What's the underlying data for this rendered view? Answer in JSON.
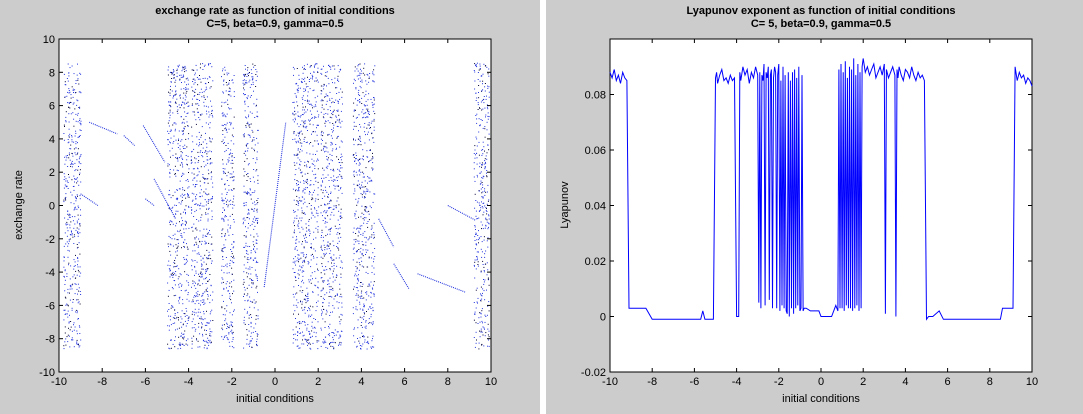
{
  "chart_data": [
    {
      "type": "scatter",
      "title": "exchange rate as function of initial conditions",
      "subtitle": "C=5, beta=0.9, gamma=0.5",
      "xlabel": "initial conditions",
      "ylabel": "exchange rate",
      "xlim": [
        -10,
        10
      ],
      "ylim": [
        -10,
        10
      ],
      "xticks": [
        -10,
        -8,
        -6,
        -4,
        -2,
        0,
        2,
        4,
        6,
        8,
        10
      ],
      "yticks": [
        -10,
        -8,
        -6,
        -4,
        -2,
        0,
        2,
        4,
        6,
        8,
        10
      ],
      "point_color": "#2233dd",
      "chaotic_bands": [
        [
          -9.8,
          -9.0
        ],
        [
          -5.0,
          -4.0
        ],
        [
          -3.9,
          -2.9
        ],
        [
          -2.5,
          -1.9
        ],
        [
          -1.5,
          -0.8
        ],
        [
          0.8,
          2.0
        ],
        [
          2.1,
          3.1
        ],
        [
          3.6,
          4.6
        ],
        [
          9.2,
          9.9
        ]
      ],
      "band_yrange": [
        -8.6,
        8.6
      ],
      "line_segments": [
        [
          [
            -8.6,
            5.0
          ],
          [
            -7.3,
            4.3
          ]
        ],
        [
          [
            -7.0,
            4.2
          ],
          [
            -6.5,
            3.6
          ]
        ],
        [
          [
            -6.1,
            4.8
          ],
          [
            -5.1,
            2.6
          ]
        ],
        [
          [
            -5.6,
            1.6
          ],
          [
            -4.6,
            -0.8
          ]
        ],
        [
          [
            -9.0,
            0.7
          ],
          [
            -8.2,
            0.0
          ]
        ],
        [
          [
            -6.0,
            0.4
          ],
          [
            -5.6,
            0.0
          ]
        ],
        [
          [
            -0.5,
            -4.9
          ],
          [
            0.5,
            5.0
          ]
        ],
        [
          [
            4.8,
            -0.8
          ],
          [
            5.5,
            -2.5
          ]
        ],
        [
          [
            5.5,
            -3.5
          ],
          [
            6.2,
            -5.0
          ]
        ],
        [
          [
            6.6,
            -4.1
          ],
          [
            8.8,
            -5.2
          ]
        ],
        [
          [
            8.0,
            0.0
          ],
          [
            9.3,
            -0.9
          ]
        ]
      ]
    },
    {
      "type": "line",
      "title": "Lyapunov exponent as function of initial conditions",
      "subtitle": "C= 5, beta=0.9, gamma=0.5",
      "xlabel": "initial conditions",
      "ylabel": "Lyapunov",
      "xlim": [
        -10,
        10
      ],
      "ylim": [
        -0.02,
        0.1
      ],
      "xticks": [
        -10,
        -8,
        -6,
        -4,
        -2,
        0,
        2,
        4,
        6,
        8,
        10
      ],
      "yticks": [
        -0.02,
        0,
        0.02,
        0.04,
        0.06,
        0.08
      ],
      "ytick_labels": [
        "-0.02",
        "0",
        "0.02",
        "0.04",
        "0.06",
        "0.08"
      ],
      "line_color": "#0000ff",
      "x": [
        -10.0,
        -9.9,
        -9.8,
        -9.7,
        -9.6,
        -9.5,
        -9.4,
        -9.3,
        -9.2,
        -9.1,
        -9.0,
        -8.9,
        -8.8,
        -8.7,
        -8.6,
        -8.5,
        -8.4,
        -8.3,
        -8.0,
        -7.0,
        -6.0,
        -5.7,
        -5.6,
        -5.5,
        -5.4,
        -5.1,
        -5.0,
        -4.95,
        -4.9,
        -4.8,
        -4.7,
        -4.6,
        -4.5,
        -4.4,
        -4.3,
        -4.2,
        -4.1,
        -4.0,
        -3.9,
        -3.85,
        -3.8,
        -3.7,
        -3.6,
        -3.5,
        -3.4,
        -3.3,
        -3.2,
        -3.1,
        -3.0,
        -2.95,
        -2.9,
        -2.85,
        -2.8,
        -2.75,
        -2.7,
        -2.65,
        -2.6,
        -2.55,
        -2.5,
        -2.45,
        -2.4,
        -2.35,
        -2.3,
        -2.25,
        -2.2,
        -2.15,
        -2.1,
        -2.05,
        -2.0,
        -1.95,
        -1.9,
        -1.85,
        -1.8,
        -1.75,
        -1.7,
        -1.65,
        -1.6,
        -1.55,
        -1.5,
        -1.45,
        -1.4,
        -1.35,
        -1.3,
        -1.25,
        -1.2,
        -1.15,
        -1.1,
        -1.05,
        -1.0,
        -0.95,
        -0.9,
        -0.85,
        -0.8,
        -0.7,
        -0.5,
        -0.3,
        -0.1,
        0.0,
        0.3,
        0.5,
        0.7,
        0.8,
        0.85,
        0.9,
        0.95,
        1.0,
        1.05,
        1.1,
        1.15,
        1.2,
        1.25,
        1.3,
        1.35,
        1.4,
        1.45,
        1.5,
        1.55,
        1.6,
        1.65,
        1.7,
        1.75,
        1.8,
        1.85,
        1.9,
        1.95,
        2.0,
        2.1,
        2.2,
        2.3,
        2.4,
        2.5,
        2.6,
        2.7,
        2.8,
        2.9,
        3.0,
        3.05,
        3.1,
        3.2,
        3.3,
        3.4,
        3.5,
        3.55,
        3.6,
        3.65,
        3.7,
        3.8,
        3.9,
        4.0,
        4.1,
        4.2,
        4.3,
        4.4,
        4.5,
        4.6,
        4.7,
        4.8,
        4.9,
        5.0,
        5.1,
        5.3,
        5.6,
        5.8,
        6.0,
        7.0,
        8.0,
        8.5,
        8.6,
        8.8,
        9.0,
        9.1,
        9.2,
        9.3,
        9.4,
        9.5,
        9.6,
        9.7,
        9.8,
        9.9,
        10.0
      ],
      "y": [
        0.088,
        0.086,
        0.089,
        0.085,
        0.087,
        0.084,
        0.088,
        0.086,
        0.085,
        0.003,
        0.003,
        0.003,
        0.003,
        0.003,
        0.003,
        0.003,
        0.003,
        0.003,
        -0.001,
        -0.001,
        -0.001,
        -0.001,
        0.002,
        -0.001,
        -0.001,
        -0.001,
        0.086,
        0.088,
        0.084,
        0.087,
        0.089,
        0.085,
        0.086,
        0.084,
        0.087,
        0.085,
        0.086,
        0.0,
        0.0,
        0.088,
        0.085,
        0.09,
        0.087,
        0.089,
        0.084,
        0.088,
        0.086,
        0.09,
        0.087,
        0.005,
        0.088,
        0.003,
        0.087,
        0.085,
        0.091,
        0.004,
        0.088,
        0.086,
        0.09,
        0.006,
        0.087,
        0.089,
        0.003,
        0.086,
        0.09,
        0.088,
        0.003,
        0.087,
        0.091,
        0.002,
        0.085,
        0.004,
        0.09,
        0.003,
        0.087,
        0.002,
        0.001,
        0.088,
        0.0,
        0.085,
        0.003,
        0.088,
        0.001,
        0.089,
        0.003,
        0.086,
        0.004,
        0.09,
        0.002,
        0.003,
        0.087,
        0.002,
        0.003,
        0.003,
        0.002,
        0.002,
        0.002,
        0.0,
        0.0,
        0.0,
        0.004,
        0.002,
        0.089,
        0.003,
        0.091,
        0.003,
        0.088,
        0.002,
        0.092,
        0.004,
        0.086,
        0.003,
        0.09,
        0.003,
        0.089,
        0.002,
        0.093,
        0.003,
        0.087,
        0.004,
        0.091,
        0.002,
        0.088,
        0.003,
        0.09,
        0.093,
        0.088,
        0.09,
        0.087,
        0.089,
        0.091,
        0.086,
        0.088,
        0.09,
        0.087,
        0.091,
        0.001,
        0.089,
        0.086,
        0.088,
        0.09,
        0.087,
        0.0,
        0.089,
        0.086,
        0.09,
        0.087,
        0.085,
        0.089,
        0.088,
        0.086,
        0.09,
        0.087,
        0.085,
        0.088,
        0.086,
        0.087,
        0.085,
        -0.001,
        0.0,
        0.0,
        0.002,
        -0.001,
        -0.001,
        -0.001,
        -0.001,
        -0.001,
        0.003,
        0.003,
        0.003,
        0.003,
        0.09,
        0.085,
        0.088,
        0.086,
        0.087,
        0.084,
        0.086,
        0.085,
        0.083
      ]
    }
  ]
}
